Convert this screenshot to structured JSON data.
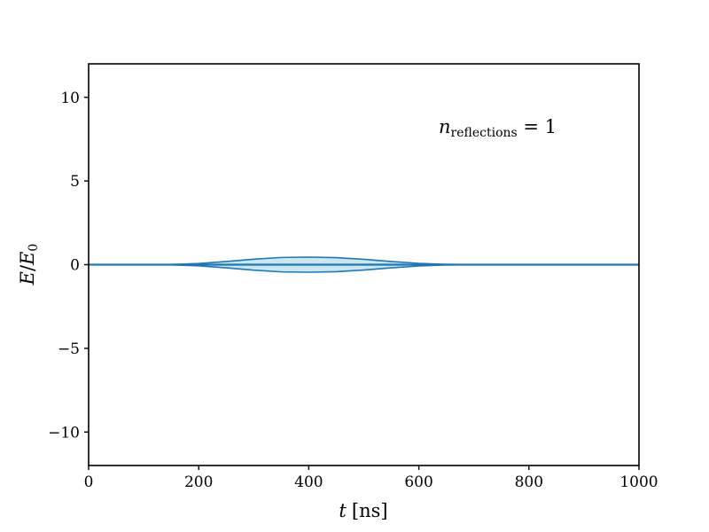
{
  "chart_data": {
    "type": "area",
    "xlabel_var": "t",
    "xlabel_unit": "[ns]",
    "ylabel_num": "E",
    "ylabel_den": "E",
    "ylabel_den_sub": "0",
    "xlim": [
      0,
      1000
    ],
    "ylim": [
      -12,
      12
    ],
    "xticks": [
      0,
      200,
      400,
      600,
      800,
      1000
    ],
    "yticks": [
      -10,
      -5,
      0,
      5,
      10
    ],
    "xtick_labels": [
      "0",
      "200",
      "400",
      "600",
      "800",
      "1000"
    ],
    "ytick_labels": [
      "−10",
      "−5",
      "0",
      "5",
      "10"
    ],
    "grid": false,
    "annotation": {
      "var": "n",
      "sub": "reflections",
      "rest": " = 1"
    },
    "envelope": {
      "x": [
        0,
        100,
        150,
        200,
        250,
        300,
        350,
        400,
        450,
        500,
        550,
        600,
        650,
        700,
        800,
        1000
      ],
      "y_upper": [
        0,
        0,
        0.01,
        0.07,
        0.19,
        0.33,
        0.43,
        0.45,
        0.42,
        0.32,
        0.19,
        0.08,
        0.02,
        0,
        0,
        0
      ],
      "y_lower": [
        0,
        0,
        -0.01,
        -0.07,
        -0.19,
        -0.33,
        -0.43,
        -0.45,
        -0.42,
        -0.32,
        -0.19,
        -0.08,
        -0.02,
        0,
        0,
        0
      ]
    },
    "baseline": 0,
    "colors": {
      "line": "#1f77b4",
      "fill": "#add8e6"
    }
  }
}
